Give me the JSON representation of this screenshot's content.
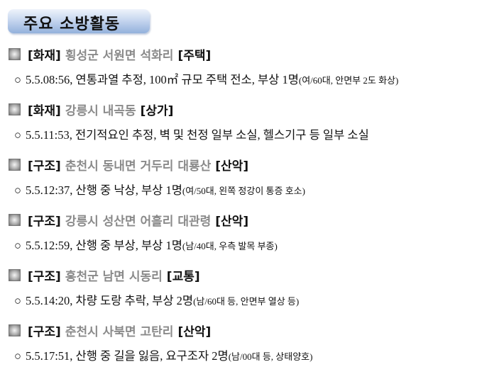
{
  "title": "주요 소방활동",
  "entries": [
    {
      "category": "[화재]",
      "location": "횡성군 서원면 석화리",
      "type": "[주택]",
      "bullet": "○",
      "detail": "5.5.08:56, 연통과열 추정, 100㎡ 규모 주택 전소, 부상 1명",
      "note": "(여/60대, 안면부 2도 화상)"
    },
    {
      "category": "[화재]",
      "location": "강릉시 내곡동",
      "type": "[상가]",
      "bullet": "○",
      "detail": "5.5.11:53, 전기적요인 추정, 벽 및 천정 일부 소실, 헬스기구 등 일부 소실",
      "note": ""
    },
    {
      "category": "[구조]",
      "location": "춘천시 동내면 거두리 대룡산",
      "type": "[산악]",
      "bullet": "○",
      "detail": "5.5.12:37, 산행 중 낙상, 부상 1명",
      "note": "(여/50대, 왼쪽 정강이 통증 호소)"
    },
    {
      "category": "[구조]",
      "location": "강릉시 성산면 어흘리 대관령",
      "type": "[산악]",
      "bullet": "○",
      "detail": "5.5.12:59, 산행 중 부상, 부상 1명",
      "note": "(남/40대, 우측 발목 부종)"
    },
    {
      "category": "[구조]",
      "location": "홍천군 남면 시동리",
      "type": "[교통]",
      "bullet": "○",
      "detail": "5.5.14:20, 차량 도랑 추락, 부상 2명",
      "note": "(남/60대 등, 안면부 열상 등)"
    },
    {
      "category": "[구조]",
      "location": "춘천시 사북면 고탄리",
      "type": "[산악]",
      "bullet": "○",
      "detail": "5.5.17:51, 산행 중 길을 잃음, 요구조자 2명",
      "note": "(남/00대 등, 상태양호)"
    }
  ]
}
